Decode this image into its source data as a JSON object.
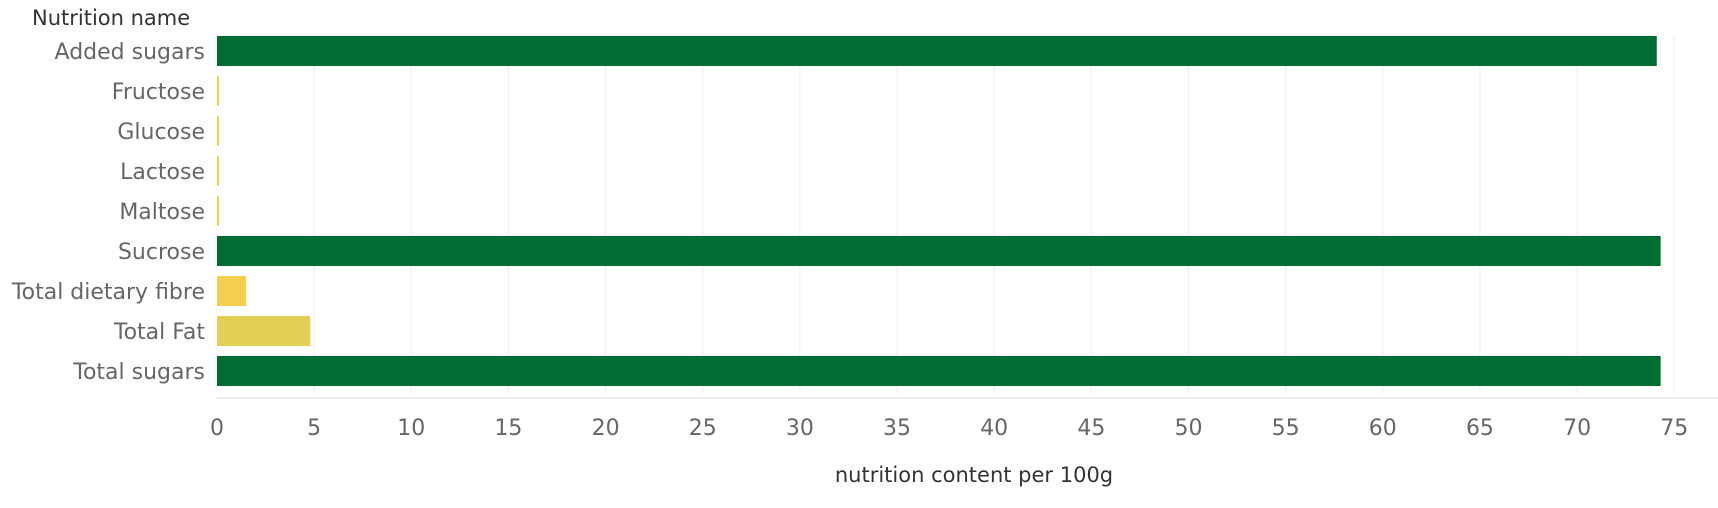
{
  "chart_data": {
    "type": "bar",
    "orientation": "horizontal",
    "row_header": "Nutrition name",
    "xlabel": "nutrition content per 100g",
    "ylabel": "",
    "categories": [
      "Added sugars",
      "Fructose",
      "Glucose",
      "Lactose",
      "Maltose",
      "Sucrose",
      "Total dietary fibre",
      "Total Fat",
      "Total sugars"
    ],
    "values": [
      74.1,
      0.1,
      0.1,
      0.1,
      0.1,
      74.3,
      1.5,
      4.8,
      74.3
    ],
    "bar_colors": [
      "#006d33",
      "#f3cf4d",
      "#f3cf4d",
      "#f3cf4d",
      "#f3cf4d",
      "#006d33",
      "#f3cf4d",
      "#e4cf55",
      "#006d33"
    ],
    "xlim": [
      0,
      76
    ],
    "x_ticks": [
      "0",
      "5",
      "10",
      "15",
      "20",
      "25",
      "30",
      "35",
      "40",
      "45",
      "50",
      "55",
      "60",
      "65",
      "70",
      "75"
    ],
    "grid": true,
    "legend": "none"
  }
}
